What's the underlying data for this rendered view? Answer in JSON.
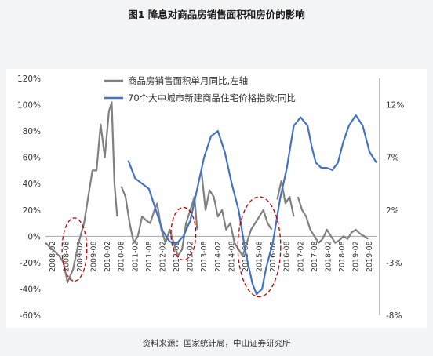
{
  "title": "图1  降息对商品房销售面积和房价的影响",
  "source": "资料来源：国家统计局，中山证券研究所",
  "chart_data": {
    "type": "line",
    "left_axis": {
      "min": -0.6,
      "max": 1.2,
      "ticks": [
        "-60%",
        "-40%",
        "-20%",
        "0%",
        "20%",
        "40%",
        "60%",
        "80%",
        "100%",
        "120%"
      ]
    },
    "right_axis": {
      "min": -0.08,
      "max": 0.145,
      "ticks": [
        "-8%",
        "-3%",
        "2%",
        "7%",
        "12%"
      ],
      "tick_values": [
        -0.08,
        -0.03,
        0.02,
        0.07,
        0.12
      ]
    },
    "x_labels": [
      "2008-02",
      "2008-08",
      "2009-02",
      "2009-08",
      "2010-02",
      "2010-08",
      "2011-02",
      "2011-08",
      "2012-02",
      "2012-08",
      "2013-02",
      "2013-08",
      "2014-02",
      "2014-08",
      "2015-02",
      "2015-08",
      "2016-02",
      "2016-08",
      "2017-02",
      "2017-08",
      "2018-02",
      "2018-08",
      "2019-02",
      "2019-08"
    ],
    "series": [
      {
        "name": "商品房销售面积单月同比,左轴",
        "axis": "left",
        "color": "#808080",
        "points": [
          [
            0,
            -0.05
          ],
          [
            0.5,
            -0.1
          ],
          [
            1,
            -0.15
          ],
          [
            1.3,
            -0.2
          ],
          [
            1.6,
            -0.35
          ],
          [
            2,
            -0.25
          ],
          [
            2.4,
            -0.05
          ],
          [
            2.8,
            0.1
          ],
          [
            3.1,
            0.3
          ],
          [
            3.4,
            0.5
          ],
          [
            3.7,
            0.5
          ],
          [
            4,
            0.85
          ],
          [
            4.3,
            0.6
          ],
          [
            4.6,
            0.95
          ],
          [
            4.8,
            1.02
          ],
          [
            5.0,
            0.4
          ],
          [
            5.2,
            0.15
          ],
          null,
          [
            5.5,
            0.38
          ],
          [
            5.8,
            0.3
          ],
          [
            6.1,
            0.1
          ],
          [
            6.4,
            -0.05
          ],
          [
            6.7,
            0.0
          ],
          [
            7.0,
            0.15
          ],
          [
            7.3,
            0.12
          ],
          [
            7.6,
            0.1
          ],
          [
            7.9,
            0.2
          ],
          [
            8.1,
            0.25
          ],
          [
            8.4,
            0.05
          ],
          [
            8.7,
            -0.05
          ],
          [
            9.0,
            0.05
          ],
          [
            9.3,
            -0.05
          ],
          [
            9.6,
            -0.15
          ],
          [
            9.9,
            -0.1
          ],
          [
            10.2,
            0.1
          ],
          [
            10.5,
            0.2
          ],
          [
            10.8,
            0.3
          ],
          [
            11.0,
            0.05
          ],
          null,
          [
            11.3,
            0.5
          ],
          [
            11.6,
            0.2
          ],
          [
            11.9,
            0.35
          ],
          [
            12.2,
            0.3
          ],
          [
            12.5,
            0.15
          ],
          [
            12.8,
            0.2
          ],
          [
            13.1,
            0.05
          ],
          [
            13.4,
            0.1
          ],
          [
            13.7,
            -0.05
          ],
          [
            14.0,
            -0.1
          ],
          [
            14.3,
            -0.15
          ],
          [
            14.6,
            -0.05
          ],
          [
            14.9,
            0.05
          ],
          [
            15.2,
            0.1
          ],
          [
            15.5,
            0.15
          ],
          [
            15.8,
            0.2
          ],
          [
            16.1,
            0.1
          ],
          [
            16.4,
            0.05
          ],
          null,
          [
            16.8,
            0.28
          ],
          [
            17.1,
            0.42
          ],
          [
            17.4,
            0.25
          ],
          [
            17.7,
            0.3
          ],
          [
            18.0,
            0.15
          ],
          null,
          [
            18.3,
            0.3
          ],
          [
            18.6,
            0.2
          ],
          [
            18.9,
            0.15
          ],
          [
            19.2,
            0.05
          ],
          [
            19.5,
            0.0
          ],
          [
            19.8,
            -0.05
          ],
          [
            20.1,
            -0.02
          ],
          [
            20.4,
            0.05
          ],
          [
            20.7,
            0.0
          ],
          [
            21.0,
            -0.05
          ],
          [
            21.3,
            -0.03
          ],
          [
            21.6,
            0.0
          ],
          [
            21.9,
            -0.02
          ],
          [
            22.2,
            0.03
          ],
          [
            22.5,
            0.05
          ],
          [
            22.8,
            0.02
          ],
          [
            23.1,
            0.0
          ],
          [
            23.4,
            -0.02
          ]
        ]
      },
      {
        "name": "70个大中城市新建商品住宅价格指数:同比",
        "axis": "right",
        "color": "#4472c4",
        "points": [
          [
            6.0,
            0.067
          ],
          [
            6.5,
            0.05
          ],
          [
            7.0,
            0.045
          ],
          [
            7.5,
            0.04
          ],
          [
            8.0,
            0.02
          ],
          [
            8.5,
            0.0
          ],
          [
            9.0,
            -0.01
          ],
          [
            9.5,
            -0.012
          ],
          [
            10.0,
            -0.005
          ],
          [
            10.5,
            0.01
          ],
          [
            11.0,
            0.04
          ],
          [
            11.5,
            0.07
          ],
          [
            12.0,
            0.09
          ],
          [
            12.5,
            0.095
          ],
          [
            13.0,
            0.075
          ],
          [
            13.5,
            0.045
          ],
          [
            14.0,
            0.02
          ],
          [
            14.5,
            -0.02
          ],
          [
            15.0,
            -0.05
          ],
          [
            15.3,
            -0.06
          ],
          [
            15.7,
            -0.055
          ],
          [
            16.0,
            -0.035
          ],
          [
            16.5,
            -0.01
          ],
          [
            17.0,
            0.03
          ],
          [
            17.5,
            0.06
          ],
          [
            18.0,
            0.1
          ],
          [
            18.5,
            0.108
          ],
          [
            19.0,
            0.1
          ],
          [
            19.3,
            0.08
          ],
          [
            19.6,
            0.065
          ],
          [
            20.0,
            0.06
          ],
          [
            20.4,
            0.06
          ],
          [
            20.8,
            0.058
          ],
          [
            21.2,
            0.065
          ],
          [
            21.6,
            0.085
          ],
          [
            22.0,
            0.1
          ],
          [
            22.5,
            0.11
          ],
          [
            23.0,
            0.1
          ],
          [
            23.5,
            0.075
          ],
          [
            24.0,
            0.065
          ]
        ]
      }
    ],
    "legend_position": "top",
    "annotations": [
      "dashed red ellipses marking rate-cut periods"
    ]
  }
}
